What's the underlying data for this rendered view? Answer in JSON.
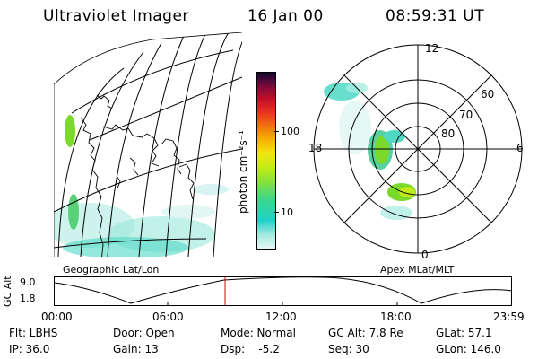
{
  "header": {
    "title": "Ultraviolet Imager",
    "date": "16 Jan 00",
    "time": "08:59:31 UT"
  },
  "colorbar": {
    "label": "photon cm⁻²s⁻¹",
    "ticks": [
      "100",
      "10"
    ]
  },
  "geo_map": {
    "label": "Geographic Lat/Lon"
  },
  "polar_map": {
    "label": "Apex MLat/MLT",
    "mlt_labels": {
      "top": "12",
      "left": "18",
      "right": "6",
      "bottom": "0"
    },
    "lat_labels": [
      "60",
      "70",
      "80"
    ]
  },
  "altitude_plot": {
    "ylabel": "GC Alt",
    "yticks": [
      "9.0",
      "1.8"
    ],
    "xticks": [
      "00:00",
      "06:00",
      "12:00",
      "18:00",
      "23:59"
    ]
  },
  "footer": {
    "row1": {
      "flt": "Flt: LBHS",
      "door": "Door: Open",
      "mode": "Mode: Normal",
      "gcalt": "GC Alt: 7.8 Re",
      "glat": "GLat:  57.1"
    },
    "row2": {
      "ip": "IP: 36.0",
      "gain": "Gain: 13",
      "dsp": "Dsp:    -5.2",
      "seq": "Seq: 30",
      "glon": "GLon: 146.0"
    }
  },
  "colors": {
    "bar_stops": [
      "#e6f6f6",
      "#a0eadf",
      "#22d0c8",
      "#3cd68c",
      "#86e23a",
      "#c2ea1a",
      "#f0e612",
      "#f8b008",
      "#f07010",
      "#e43020",
      "#c01028",
      "#8a0a38",
      "#4a0a3a",
      "#120828"
    ],
    "cursor": "#dd0000"
  }
}
